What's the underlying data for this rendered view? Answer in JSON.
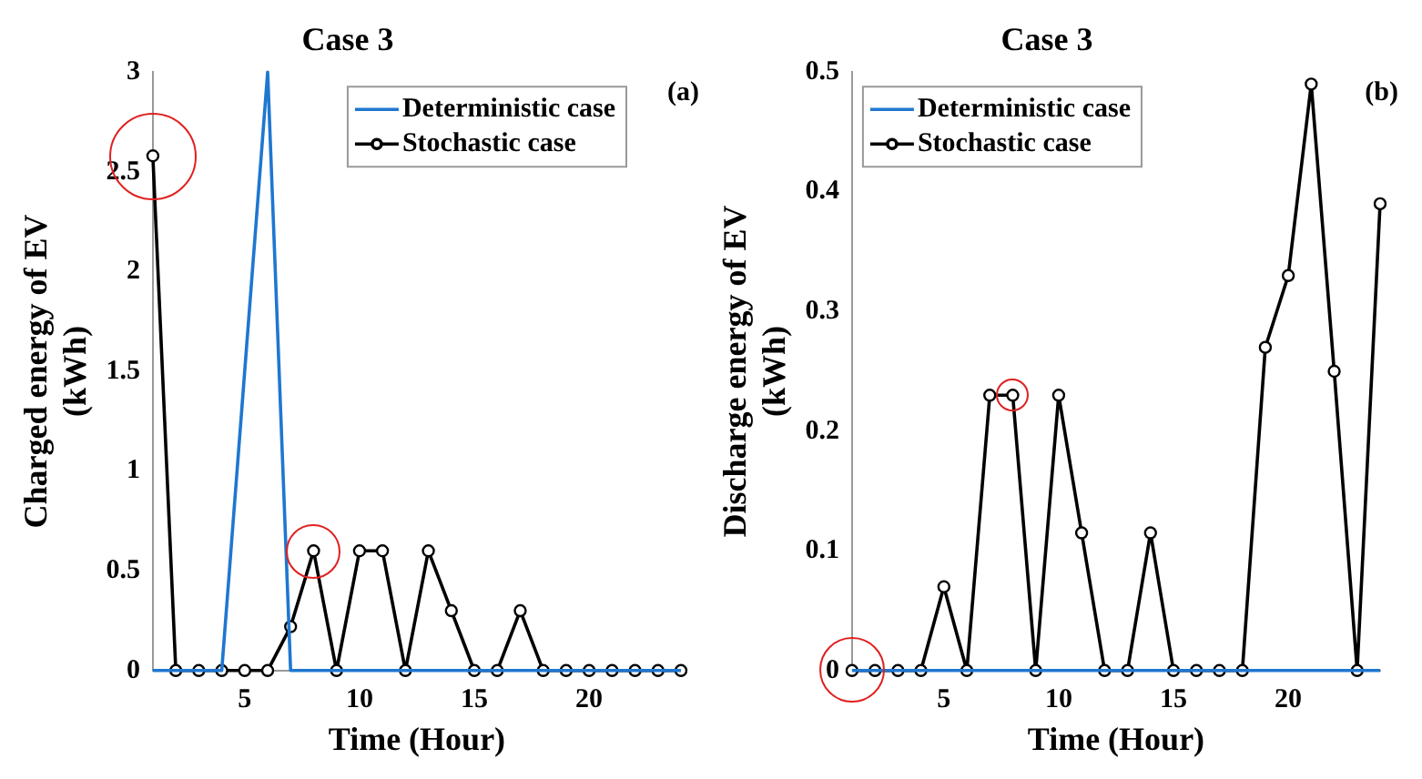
{
  "chart_data": [
    {
      "type": "line",
      "title": "Case 3",
      "xlabel": "Time (Hour)",
      "ylabel": "Charged energy of EV\n(kWh)",
      "annotations": [
        "(a)"
      ],
      "x": [
        1,
        2,
        3,
        4,
        5,
        6,
        7,
        8,
        9,
        10,
        11,
        12,
        13,
        14,
        15,
        16,
        17,
        18,
        19,
        20,
        21,
        22,
        23,
        24
      ],
      "series": [
        {
          "name": "Deterministic case",
          "color": "#1f77d0",
          "marker": "none",
          "values": [
            0,
            0,
            0,
            0,
            1.5,
            3,
            0,
            0,
            0,
            0,
            0,
            0,
            0,
            0,
            0,
            0,
            0,
            0,
            0,
            0,
            0,
            0,
            0,
            0
          ]
        },
        {
          "name": "Stochastic case",
          "color": "#000000",
          "marker": "circle",
          "values": [
            2.58,
            0,
            0,
            0,
            0,
            0,
            0.22,
            0.6,
            0,
            0.6,
            0.6,
            0,
            0.6,
            0.3,
            0,
            0,
            0.3,
            0,
            0,
            0,
            0,
            0,
            0,
            0
          ]
        }
      ],
      "xlim": [
        1,
        24
      ],
      "xticks": [
        5,
        10,
        15,
        20
      ],
      "ylim": [
        0,
        3
      ],
      "yticks": [
        0,
        0.5,
        1,
        1.5,
        2,
        2.5,
        3
      ],
      "grid": false,
      "legend": "top right"
    },
    {
      "type": "line",
      "title": "Case 3",
      "xlabel": "Time (Hour)",
      "ylabel": "Discharge energy of EV\n(kWh)",
      "annotations": [
        "(b)"
      ],
      "x": [
        1,
        2,
        3,
        4,
        5,
        6,
        7,
        8,
        9,
        10,
        11,
        12,
        13,
        14,
        15,
        16,
        17,
        18,
        19,
        20,
        21,
        22,
        23,
        24
      ],
      "series": [
        {
          "name": "Deterministic case",
          "color": "#1f77d0",
          "marker": "none",
          "values": [
            0,
            0,
            0,
            0,
            0,
            0,
            0,
            0,
            0,
            0,
            0,
            0,
            0,
            0,
            0,
            0,
            0,
            0,
            0,
            0,
            0,
            0,
            0,
            0
          ]
        },
        {
          "name": "Stochastic case",
          "color": "#000000",
          "marker": "circle",
          "values": [
            0,
            0,
            0,
            0,
            0.07,
            0,
            0.23,
            0.23,
            0,
            0.23,
            0.115,
            0,
            0,
            0.115,
            0,
            0,
            0,
            0,
            0.27,
            0.33,
            0.49,
            0.25,
            0,
            0.39
          ]
        }
      ],
      "xlim": [
        1,
        24
      ],
      "xticks": [
        5,
        10,
        15,
        20
      ],
      "ylim": [
        0,
        0.5
      ],
      "yticks": [
        0,
        0.1,
        0.2,
        0.3,
        0.4,
        0.5
      ],
      "grid": false,
      "legend": "top left"
    }
  ]
}
